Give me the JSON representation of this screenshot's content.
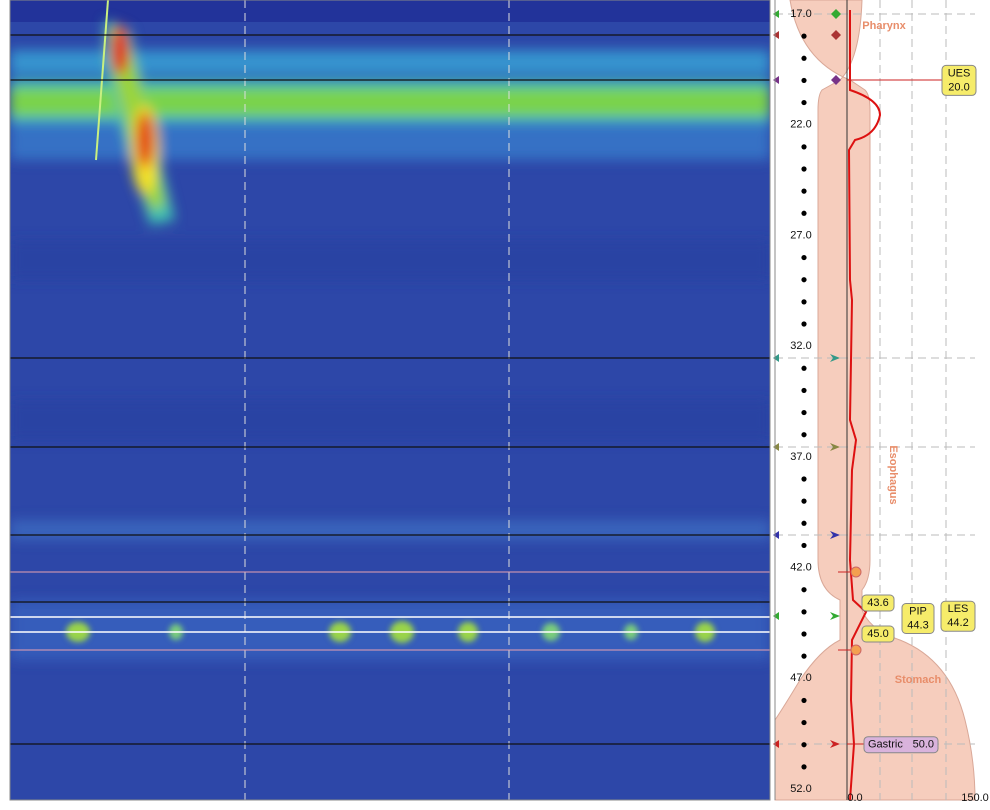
{
  "depth_axis": {
    "ticks": [
      {
        "value": 17,
        "label": "17.0"
      },
      {
        "value": 22,
        "label": "22.0"
      },
      {
        "value": 27,
        "label": "27.0"
      },
      {
        "value": 32,
        "label": "32.0"
      },
      {
        "value": 37,
        "label": "37.0"
      },
      {
        "value": 42,
        "label": "42.0"
      },
      {
        "value": 47,
        "label": "47.0"
      },
      {
        "value": 52,
        "label": "52.0"
      }
    ]
  },
  "pressure_axis": {
    "ticks": [
      {
        "value": 0,
        "label": "0.0"
      },
      {
        "value": 150,
        "label": "150.0"
      }
    ]
  },
  "regions": {
    "pharynx": "Pharynx",
    "esophagus": "Esophagus",
    "stomach": "Stomach"
  },
  "markers": [
    {
      "name": "UES",
      "depth": 20,
      "label": "20.0"
    },
    {
      "depth": 43.6,
      "label": "43.6"
    },
    {
      "name": "PIP",
      "depth": 44.3,
      "label": "44.3"
    },
    {
      "name": "LES",
      "depth": 44.2,
      "label": "44.2"
    },
    {
      "depth": 45,
      "label": "45.0"
    },
    {
      "name": "Gastric",
      "depth": 50,
      "label": "50.0"
    }
  ]
}
